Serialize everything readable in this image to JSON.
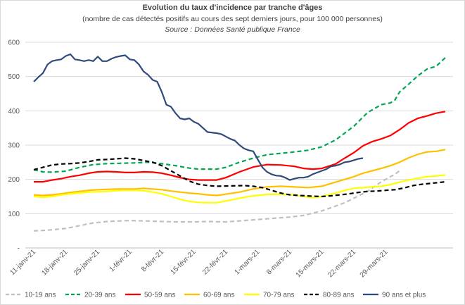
{
  "chart_data": {
    "type": "line",
    "title": "Evolution du taux d'incidence par tranche d'âges",
    "subtitle": "(nombre de cas détectés positifs au cours des sept derniers jours, pour 100 000 personnes)",
    "source": "Source : Données Santé publique France",
    "xlabel": "",
    "ylabel": "",
    "ylim": [
      0,
      600
    ],
    "yticks": [
      0,
      100,
      200,
      300,
      400,
      500,
      600
    ],
    "ytick_labels": [
      "-",
      "100",
      "200",
      "300",
      "400",
      "500",
      "600"
    ],
    "x_start": "11-janv-21",
    "num_days": 80,
    "xtick_labels": [
      "11-janv-21",
      "18-janv-21",
      "25-janv-21",
      "1-févr-21",
      "8-févr-21",
      "15-févr-21",
      "22-févr-21",
      "1-mars-21",
      "8-mars-21",
      "15-mars-21",
      "22-mars-21",
      "29-mars-21"
    ],
    "grid": true,
    "legend_position": "bottom",
    "series": [
      {
        "name": "10-19 ans",
        "color": "#bfbfbf",
        "dash": "6,4",
        "points": [
          [
            0,
            50
          ],
          [
            2,
            51
          ],
          [
            4,
            53
          ],
          [
            7,
            57
          ],
          [
            10,
            65
          ],
          [
            13,
            73
          ],
          [
            16,
            77
          ],
          [
            19,
            79
          ],
          [
            21,
            80
          ],
          [
            24,
            79
          ],
          [
            28,
            77
          ],
          [
            31,
            76
          ],
          [
            35,
            76
          ],
          [
            38,
            77
          ],
          [
            42,
            76
          ],
          [
            45,
            79
          ],
          [
            48,
            82
          ],
          [
            52,
            86
          ],
          [
            56,
            90
          ],
          [
            59,
            95
          ],
          [
            63,
            108
          ],
          [
            66,
            122
          ],
          [
            68,
            132
          ],
          [
            70,
            145
          ],
          [
            73,
            165
          ],
          [
            76,
            193
          ],
          [
            78,
            208
          ],
          [
            79,
            215
          ],
          [
            80,
            225
          ]
        ]
      },
      {
        "name": "20-39 ans",
        "color": "#00a651",
        "dash": "6,4",
        "points": [
          [
            0,
            228
          ],
          [
            2,
            222
          ],
          [
            4,
            221
          ],
          [
            7,
            224
          ],
          [
            10,
            235
          ],
          [
            13,
            243
          ],
          [
            16,
            246
          ],
          [
            19,
            247
          ],
          [
            22,
            248
          ],
          [
            25,
            250
          ],
          [
            28,
            246
          ],
          [
            31,
            240
          ],
          [
            34,
            233
          ],
          [
            36,
            230
          ],
          [
            38,
            230
          ],
          [
            40,
            230
          ],
          [
            42,
            235
          ],
          [
            45,
            250
          ],
          [
            48,
            262
          ],
          [
            51,
            272
          ],
          [
            54,
            276
          ],
          [
            57,
            280
          ],
          [
            60,
            285
          ],
          [
            63,
            295
          ],
          [
            66,
            315
          ],
          [
            68,
            335
          ],
          [
            70,
            355
          ],
          [
            73,
            395
          ],
          [
            76,
            418
          ],
          [
            78,
            423
          ],
          [
            79,
            432
          ],
          [
            80,
            455
          ],
          [
            82,
            478
          ],
          [
            84,
            502
          ],
          [
            86,
            522
          ],
          [
            88,
            530
          ],
          [
            90,
            555
          ]
        ]
      },
      {
        "name": "50-59 ans",
        "color": "#ff0000",
        "dash": "",
        "points": [
          [
            0,
            193
          ],
          [
            2,
            193
          ],
          [
            4,
            198
          ],
          [
            6,
            202
          ],
          [
            8,
            208
          ],
          [
            10,
            212
          ],
          [
            12,
            218
          ],
          [
            14,
            222
          ],
          [
            16,
            223
          ],
          [
            18,
            222
          ],
          [
            20,
            220
          ],
          [
            22,
            220
          ],
          [
            24,
            222
          ],
          [
            26,
            221
          ],
          [
            28,
            218
          ],
          [
            30,
            212
          ],
          [
            32,
            205
          ],
          [
            34,
            200
          ],
          [
            36,
            198
          ],
          [
            38,
            198
          ],
          [
            40,
            198
          ],
          [
            42,
            205
          ],
          [
            45,
            222
          ],
          [
            48,
            236
          ],
          [
            51,
            243
          ],
          [
            54,
            242
          ],
          [
            57,
            238
          ],
          [
            59,
            232
          ],
          [
            61,
            230
          ],
          [
            63,
            232
          ],
          [
            66,
            245
          ],
          [
            68,
            262
          ],
          [
            70,
            278
          ],
          [
            72,
            298
          ],
          [
            74,
            310
          ],
          [
            76,
            318
          ],
          [
            78,
            328
          ],
          [
            80,
            345
          ],
          [
            82,
            365
          ],
          [
            84,
            378
          ],
          [
            86,
            385
          ],
          [
            88,
            393
          ],
          [
            90,
            398
          ]
        ]
      },
      {
        "name": "60-69 ans",
        "color": "#ffc000",
        "dash": "",
        "points": [
          [
            0,
            155
          ],
          [
            2,
            153
          ],
          [
            4,
            155
          ],
          [
            6,
            158
          ],
          [
            8,
            162
          ],
          [
            10,
            165
          ],
          [
            12,
            168
          ],
          [
            14,
            170
          ],
          [
            16,
            171
          ],
          [
            18,
            172
          ],
          [
            20,
            172
          ],
          [
            22,
            172
          ],
          [
            24,
            174
          ],
          [
            26,
            172
          ],
          [
            28,
            170
          ],
          [
            30,
            166
          ],
          [
            32,
            163
          ],
          [
            34,
            160
          ],
          [
            36,
            158
          ],
          [
            38,
            155
          ],
          [
            40,
            153
          ],
          [
            42,
            157
          ],
          [
            45,
            163
          ],
          [
            48,
            172
          ],
          [
            51,
            178
          ],
          [
            54,
            180
          ],
          [
            57,
            178
          ],
          [
            60,
            176
          ],
          [
            63,
            180
          ],
          [
            66,
            192
          ],
          [
            68,
            200
          ],
          [
            70,
            208
          ],
          [
            72,
            218
          ],
          [
            74,
            225
          ],
          [
            76,
            232
          ],
          [
            78,
            240
          ],
          [
            80,
            250
          ],
          [
            82,
            263
          ],
          [
            84,
            273
          ],
          [
            86,
            280
          ],
          [
            88,
            282
          ],
          [
            90,
            287
          ]
        ]
      },
      {
        "name": "70-79 ans",
        "color": "#ffff00",
        "dash": "",
        "points": [
          [
            0,
            150
          ],
          [
            2,
            148
          ],
          [
            4,
            150
          ],
          [
            6,
            155
          ],
          [
            8,
            158
          ],
          [
            10,
            160
          ],
          [
            12,
            163
          ],
          [
            14,
            164
          ],
          [
            16,
            165
          ],
          [
            18,
            167
          ],
          [
            20,
            168
          ],
          [
            22,
            168
          ],
          [
            24,
            167
          ],
          [
            26,
            163
          ],
          [
            28,
            158
          ],
          [
            30,
            150
          ],
          [
            32,
            142
          ],
          [
            34,
            136
          ],
          [
            36,
            133
          ],
          [
            38,
            132
          ],
          [
            40,
            132
          ],
          [
            42,
            137
          ],
          [
            45,
            145
          ],
          [
            48,
            152
          ],
          [
            51,
            156
          ],
          [
            54,
            157
          ],
          [
            57,
            155
          ],
          [
            59,
            150
          ],
          [
            61,
            147
          ],
          [
            63,
            150
          ],
          [
            66,
            160
          ],
          [
            68,
            168
          ],
          [
            70,
            174
          ],
          [
            72,
            176
          ],
          [
            74,
            178
          ],
          [
            76,
            180
          ],
          [
            78,
            185
          ],
          [
            80,
            192
          ],
          [
            82,
            198
          ],
          [
            84,
            203
          ],
          [
            86,
            208
          ],
          [
            88,
            210
          ],
          [
            90,
            213
          ]
        ]
      },
      {
        "name": "80-89 ans",
        "color": "#000000",
        "dash": "6,4",
        "points": [
          [
            0,
            228
          ],
          [
            2,
            235
          ],
          [
            4,
            242
          ],
          [
            6,
            245
          ],
          [
            8,
            246
          ],
          [
            10,
            248
          ],
          [
            12,
            252
          ],
          [
            14,
            257
          ],
          [
            16,
            258
          ],
          [
            18,
            260
          ],
          [
            20,
            262
          ],
          [
            22,
            260
          ],
          [
            24,
            255
          ],
          [
            26,
            250
          ],
          [
            28,
            240
          ],
          [
            30,
            225
          ],
          [
            32,
            210
          ],
          [
            34,
            195
          ],
          [
            36,
            186
          ],
          [
            38,
            182
          ],
          [
            40,
            180
          ],
          [
            43,
            181
          ],
          [
            46,
            182
          ],
          [
            48,
            180
          ],
          [
            50,
            176
          ],
          [
            52,
            168
          ],
          [
            54,
            160
          ],
          [
            56,
            155
          ],
          [
            58,
            153
          ],
          [
            61,
            151
          ],
          [
            63,
            150
          ],
          [
            65,
            152
          ],
          [
            67,
            155
          ],
          [
            69,
            158
          ],
          [
            71,
            162
          ],
          [
            73,
            165
          ],
          [
            75,
            166
          ],
          [
            77,
            168
          ],
          [
            79,
            170
          ],
          [
            81,
            175
          ],
          [
            83,
            182
          ],
          [
            85,
            186
          ],
          [
            88,
            190
          ],
          [
            90,
            193
          ]
        ]
      },
      {
        "name": "90 ans et plus",
        "color": "#2f4b7c",
        "dash": "",
        "points": [
          [
            0,
            485
          ],
          [
            1,
            498
          ],
          [
            2,
            510
          ],
          [
            3,
            535
          ],
          [
            4,
            545
          ],
          [
            5,
            548
          ],
          [
            6,
            550
          ],
          [
            7,
            560
          ],
          [
            8,
            565
          ],
          [
            9,
            550
          ],
          [
            10,
            548
          ],
          [
            11,
            545
          ],
          [
            12,
            548
          ],
          [
            13,
            545
          ],
          [
            14,
            558
          ],
          [
            15,
            545
          ],
          [
            16,
            545
          ],
          [
            17,
            552
          ],
          [
            18,
            557
          ],
          [
            19,
            560
          ],
          [
            20,
            562
          ],
          [
            21,
            550
          ],
          [
            22,
            548
          ],
          [
            23,
            535
          ],
          [
            24,
            515
          ],
          [
            25,
            505
          ],
          [
            26,
            490
          ],
          [
            27,
            485
          ],
          [
            28,
            455
          ],
          [
            29,
            418
          ],
          [
            30,
            412
          ],
          [
            31,
            393
          ],
          [
            32,
            378
          ],
          [
            33,
            375
          ],
          [
            34,
            378
          ],
          [
            35,
            368
          ],
          [
            36,
            362
          ],
          [
            37,
            350
          ],
          [
            38,
            338
          ],
          [
            40,
            335
          ],
          [
            41,
            332
          ],
          [
            42,
            325
          ],
          [
            43,
            318
          ],
          [
            44,
            313
          ],
          [
            45,
            300
          ],
          [
            46,
            290
          ],
          [
            47,
            285
          ],
          [
            48,
            282
          ],
          [
            49,
            258
          ],
          [
            50,
            235
          ],
          [
            51,
            222
          ],
          [
            52,
            215
          ],
          [
            53,
            211
          ],
          [
            54,
            210
          ],
          [
            55,
            205
          ],
          [
            56,
            198
          ],
          [
            57,
            202
          ],
          [
            58,
            205
          ],
          [
            59,
            205
          ],
          [
            60,
            208
          ],
          [
            61,
            215
          ],
          [
            62,
            220
          ],
          [
            63,
            225
          ],
          [
            64,
            230
          ],
          [
            65,
            238
          ],
          [
            66,
            240
          ],
          [
            67,
            244
          ],
          [
            68,
            250
          ],
          [
            69,
            252
          ],
          [
            70,
            256
          ],
          [
            71,
            260
          ],
          [
            72,
            262
          ]
        ]
      }
    ]
  }
}
